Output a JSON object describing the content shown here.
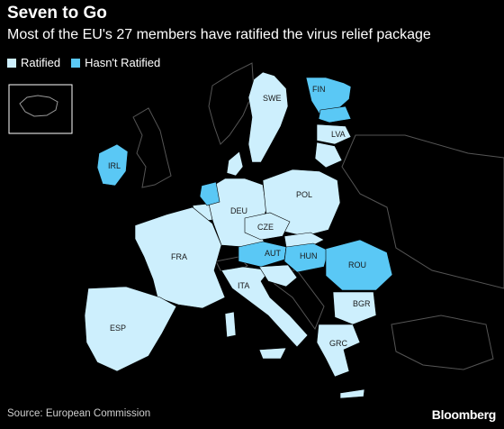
{
  "header": {
    "title": "Seven to Go",
    "subtitle": "Most of the EU's 27 members have ratified the virus relief package"
  },
  "legend": {
    "items": [
      {
        "label": "Ratified",
        "color": "#cdeffd"
      },
      {
        "label": "Hasn't Ratified",
        "color": "#5ac8f5"
      }
    ]
  },
  "map": {
    "background_land_color": "#000000",
    "border_color": "#555555",
    "country_labels": {
      "swe": "SWE",
      "fin": "FIN",
      "lva": "LVA",
      "irl": "IRL",
      "deu": "DEU",
      "pol": "POL",
      "cze": "CZE",
      "fra": "FRA",
      "aut": "AUT",
      "hun": "HUN",
      "rou": "ROU",
      "ita": "ITA",
      "bgr": "BGR",
      "esp": "ESP",
      "grc": "GRC"
    },
    "not_ratified": [
      "FIN",
      "EST",
      "IRL",
      "NLD",
      "AUT",
      "HUN",
      "ROU"
    ]
  },
  "footer": {
    "source": "Source: European Commission",
    "logo": "Bloomberg"
  }
}
